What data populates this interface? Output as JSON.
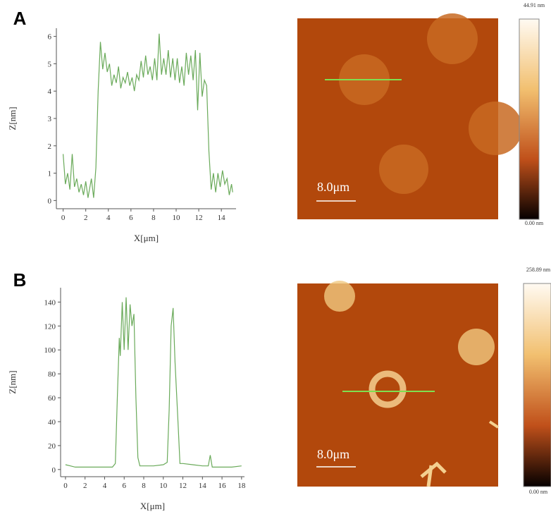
{
  "chart_data": [
    {
      "type": "line",
      "panel_label": "A",
      "x_label": "X[μm]",
      "y_label": "Z[nm]",
      "color": "#6aaa5a",
      "scale_bar": "8.0μm",
      "colorbar_max": "44.91 nm",
      "colorbar_min": "0.00 nm",
      "xlim": [
        -0.6,
        15.3
      ],
      "ylim": [
        -0.3,
        6.3
      ],
      "xticks": [
        0,
        2,
        4,
        6,
        8,
        10,
        12,
        14
      ],
      "yticks": [
        0,
        1,
        2,
        3,
        4,
        5,
        6
      ],
      "x": [
        0,
        0.2,
        0.4,
        0.6,
        0.8,
        1.0,
        1.2,
        1.4,
        1.6,
        1.8,
        2.0,
        2.2,
        2.5,
        2.7,
        2.9,
        3.1,
        3.3,
        3.5,
        3.7,
        3.9,
        4.1,
        4.3,
        4.5,
        4.7,
        4.9,
        5.1,
        5.3,
        5.5,
        5.7,
        5.9,
        6.1,
        6.3,
        6.5,
        6.7,
        6.9,
        7.1,
        7.3,
        7.5,
        7.7,
        7.9,
        8.1,
        8.3,
        8.5,
        8.7,
        8.9,
        9.1,
        9.3,
        9.5,
        9.7,
        9.9,
        10.1,
        10.3,
        10.5,
        10.7,
        10.9,
        11.1,
        11.3,
        11.5,
        11.7,
        11.9,
        12.1,
        12.3,
        12.5,
        12.7,
        12.9,
        13.1,
        13.3,
        13.5,
        13.7,
        13.9,
        14.1,
        14.3,
        14.5,
        14.7,
        14.9,
        15.0
      ],
      "values": [
        1.7,
        0.6,
        1.0,
        0.4,
        1.7,
        0.5,
        0.8,
        0.3,
        0.6,
        0.2,
        0.7,
        0.1,
        0.8,
        0.1,
        1.2,
        4.0,
        5.8,
        4.8,
        5.4,
        4.7,
        5.0,
        4.2,
        4.6,
        4.3,
        4.9,
        4.1,
        4.5,
        4.3,
        4.7,
        4.2,
        4.5,
        4.0,
        4.6,
        4.4,
        5.1,
        4.5,
        5.3,
        4.6,
        4.9,
        4.4,
        5.2,
        4.4,
        6.1,
        4.6,
        5.2,
        4.6,
        5.5,
        4.5,
        5.2,
        4.4,
        5.2,
        4.3,
        4.9,
        4.2,
        5.4,
        4.6,
        5.3,
        4.4,
        5.5,
        3.3,
        5.4,
        3.8,
        4.4,
        4.2,
        1.8,
        0.4,
        1.0,
        0.3,
        1.0,
        0.5,
        1.1,
        0.6,
        0.8,
        0.2,
        0.6,
        0.3
      ]
    },
    {
      "type": "line",
      "panel_label": "B",
      "x_label": "X[μm]",
      "y_label": "Z[nm]",
      "color": "#6aaa5a",
      "scale_bar": "8.0μm",
      "colorbar_max": "258.89 nm",
      "colorbar_min": "0.00 nm",
      "xlim": [
        -0.5,
        18.3
      ],
      "ylim": [
        -6,
        152
      ],
      "xticks": [
        0,
        2,
        4,
        6,
        8,
        10,
        12,
        14,
        16,
        18
      ],
      "yticks": [
        0,
        20,
        40,
        60,
        80,
        100,
        120,
        140
      ],
      "x": [
        0,
        0.5,
        1,
        2,
        3,
        4,
        4.8,
        5.1,
        5.3,
        5.5,
        5.6,
        5.8,
        6.0,
        6.2,
        6.4,
        6.6,
        6.8,
        7.0,
        7.2,
        7.4,
        7.6,
        8,
        9,
        10,
        10.4,
        10.6,
        10.8,
        11.0,
        11.2,
        11.5,
        11.7,
        12,
        13,
        14,
        14.6,
        14.8,
        15,
        16,
        17,
        18
      ],
      "values": [
        4,
        3,
        2,
        2,
        2,
        2,
        2,
        5,
        60,
        110,
        95,
        140,
        100,
        144,
        100,
        138,
        120,
        130,
        60,
        10,
        3,
        3,
        3,
        4,
        6,
        50,
        120,
        135,
        90,
        40,
        5,
        5,
        4,
        3,
        3,
        12,
        2,
        2,
        2,
        3
      ]
    }
  ]
}
